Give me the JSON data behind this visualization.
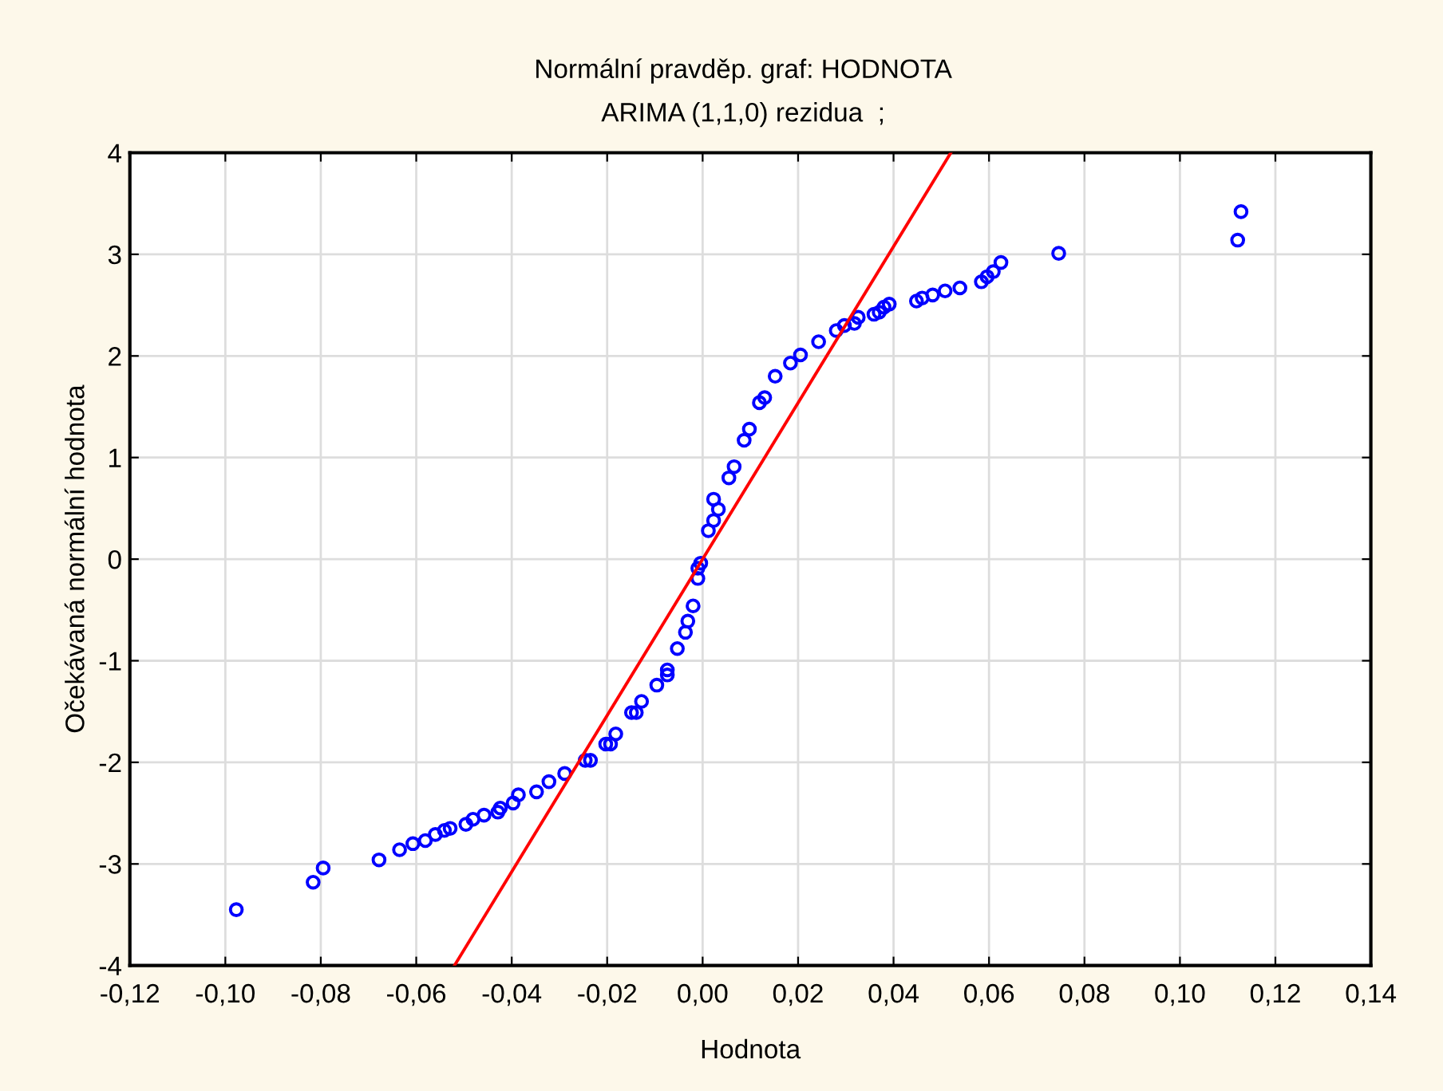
{
  "chart_data": {
    "type": "scatter",
    "title": "Normální pravděp. graf: HODNOTA",
    "subtitle": "ARIMA (1,1,0) rezidua  ;",
    "xlabel": "Hodnota",
    "ylabel": "Očekávaná normální hodnota",
    "xlim": [
      -0.12,
      0.14
    ],
    "ylim": [
      -4,
      4
    ],
    "xticks": [
      {
        "value": -0.12,
        "label": "-0,12"
      },
      {
        "value": -0.1,
        "label": "-0,10"
      },
      {
        "value": -0.08,
        "label": "-0,08"
      },
      {
        "value": -0.06,
        "label": "-0,06"
      },
      {
        "value": -0.04,
        "label": "-0,04"
      },
      {
        "value": -0.02,
        "label": "-0,02"
      },
      {
        "value": 0,
        "label": "0,00"
      },
      {
        "value": 0.02,
        "label": "0,02"
      },
      {
        "value": 0.04,
        "label": "0,04"
      },
      {
        "value": 0.06,
        "label": "0,06"
      },
      {
        "value": 0.08,
        "label": "0,08"
      },
      {
        "value": 0.1,
        "label": "0,10"
      },
      {
        "value": 0.12,
        "label": "0,12"
      },
      {
        "value": 0.14,
        "label": "0,14"
      }
    ],
    "yticks": [
      -4,
      -3,
      -2,
      -1,
      0,
      1,
      2,
      3,
      4
    ],
    "grid": true,
    "series": [
      {
        "color": "#0000ff",
        "marker": "circle",
        "x": [
          -0.0977,
          -0.0816,
          -0.0795,
          -0.0678,
          -0.0635,
          -0.0607,
          -0.0581,
          -0.056,
          -0.0541,
          -0.0529,
          -0.0496,
          -0.0481,
          -0.0458,
          -0.0429,
          -0.0424,
          -0.0397,
          -0.0386,
          -0.0348,
          -0.0322,
          -0.0289,
          -0.0246,
          -0.0235,
          -0.0203,
          -0.0193,
          -0.0182,
          -0.0149,
          -0.0139,
          -0.0128,
          -0.0096,
          -0.0074,
          -0.0074,
          -0.0053,
          -0.0036,
          -0.0031,
          -0.002,
          -0.001,
          -0.001,
          -0.0004,
          0.0012,
          0.0023,
          0.0023,
          0.0033,
          0.0055,
          0.0066,
          0.0087,
          0.0098,
          0.0119,
          0.013,
          0.0152,
          0.0184,
          0.0205,
          0.0243,
          0.028,
          0.0297,
          0.0318,
          0.0326,
          0.0359,
          0.037,
          0.038,
          0.0391,
          0.0448,
          0.046,
          0.0482,
          0.0508,
          0.0539,
          0.0584,
          0.0596,
          0.0609,
          0.0625,
          0.0746,
          0.1121,
          0.1128
        ],
        "values": [
          -3.45,
          -3.18,
          -3.04,
          -2.96,
          -2.86,
          -2.8,
          -2.77,
          -2.71,
          -2.67,
          -2.65,
          -2.61,
          -2.56,
          -2.52,
          -2.49,
          -2.45,
          -2.4,
          -2.32,
          -2.29,
          -2.19,
          -2.11,
          -1.98,
          -1.98,
          -1.82,
          -1.82,
          -1.72,
          -1.51,
          -1.51,
          -1.4,
          -1.24,
          -1.14,
          -1.09,
          -0.88,
          -0.72,
          -0.61,
          -0.46,
          -0.19,
          -0.09,
          -0.04,
          0.28,
          0.38,
          0.59,
          0.49,
          0.8,
          0.91,
          1.17,
          1.28,
          1.54,
          1.59,
          1.8,
          1.93,
          2.01,
          2.14,
          2.25,
          2.3,
          2.32,
          2.38,
          2.41,
          2.43,
          2.48,
          2.51,
          2.54,
          2.57,
          2.6,
          2.64,
          2.67,
          2.73,
          2.78,
          2.83,
          2.92,
          3.01,
          3.14,
          3.42
        ]
      },
      {
        "type": "line",
        "color": "#ff0000",
        "marker": "none",
        "x": [
          -0.052,
          0.052
        ],
        "values": [
          -4,
          4
        ]
      }
    ]
  }
}
